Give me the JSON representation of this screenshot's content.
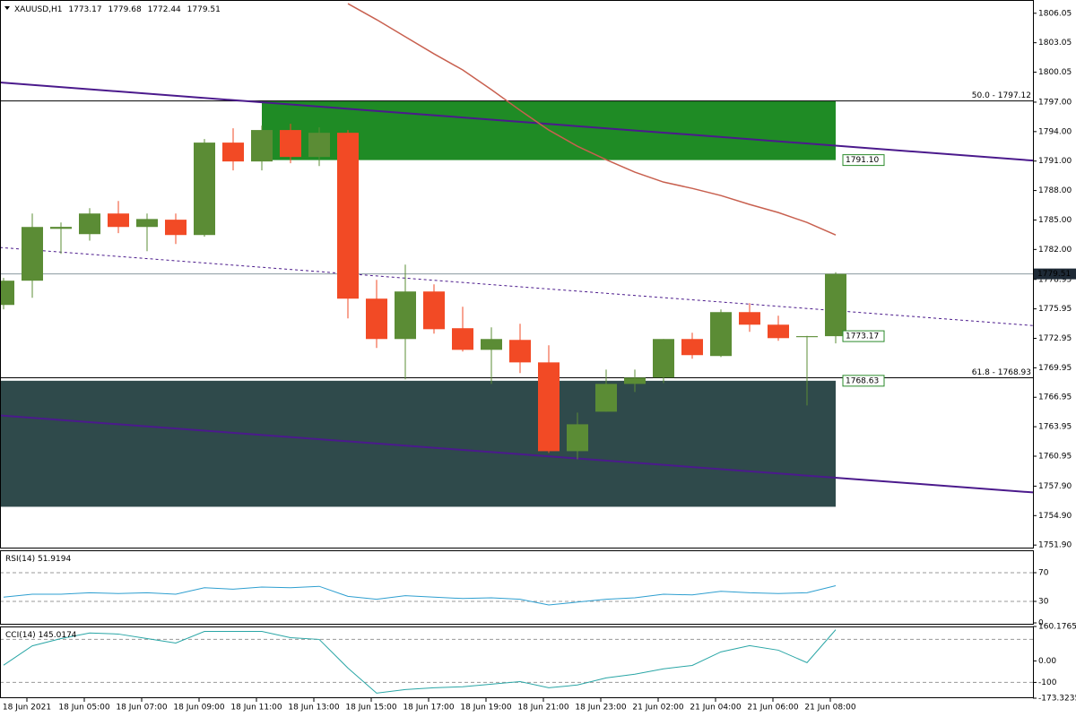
{
  "chart_data": [
    {
      "type": "candlestick",
      "title": "XAUUSD,H1",
      "categories": [
        null,
        "18 Jun 2021",
        null,
        "18 Jun 05:00",
        null,
        "18 Jun 07:00",
        null,
        "18 Jun 09:00",
        null,
        "18 Jun 11:00",
        null,
        "18 Jun 13:00",
        null,
        "18 Jun 15:00",
        null,
        "18 Jun 17:00",
        null,
        "18 Jun 19:00",
        null,
        "18 Jun 21:00",
        null,
        "18 Jun 23:00",
        null,
        "21 Jun 02:00",
        null,
        "21 Jun 04:00",
        null,
        "21 Jun 06:00",
        null,
        "21 Jun 08:00"
      ],
      "ohlc": [
        [
          1776.35,
          1779.1,
          1775.9,
          1778.82
        ],
        [
          1778.82,
          1785.66,
          1777.08,
          1784.29
        ],
        [
          1784.1,
          1784.75,
          1781.55,
          1784.3
        ],
        [
          1783.56,
          1786.2,
          1782.9,
          1785.66
        ],
        [
          1785.66,
          1786.94,
          1783.66,
          1784.29
        ],
        [
          1784.29,
          1785.66,
          1781.83,
          1785.1
        ],
        [
          1785.03,
          1785.66,
          1782.56,
          1783.47
        ],
        [
          1783.47,
          1793.24,
          1783.3,
          1792.88
        ],
        [
          1792.88,
          1794.34,
          1790.05,
          1790.96
        ],
        [
          1790.96,
          1794.61,
          1790.05,
          1794.16
        ],
        [
          1794.16,
          1794.8,
          1790.78,
          1791.42
        ],
        [
          1791.42,
          1794.43,
          1790.5,
          1793.88
        ],
        [
          1793.88,
          1794.16,
          1774.98,
          1776.99
        ],
        [
          1776.99,
          1778.9,
          1771.97,
          1772.88
        ],
        [
          1772.88,
          1780.46,
          1768.77,
          1777.72
        ],
        [
          1777.72,
          1778.45,
          1773.43,
          1773.88
        ],
        [
          1773.98,
          1776.17,
          1771.6,
          1771.78
        ],
        [
          1771.78,
          1774.07,
          1768.31,
          1772.88
        ],
        [
          1772.79,
          1774.43,
          1769.41,
          1770.5
        ],
        [
          1770.5,
          1772.24,
          1761.28,
          1761.46
        ],
        [
          1761.46,
          1765.39,
          1760.64,
          1764.2
        ],
        [
          1765.48,
          1769.77,
          1765.48,
          1768.31
        ],
        [
          1768.31,
          1769.77,
          1767.49,
          1768.95
        ],
        [
          1768.95,
          1772.88,
          1768.4,
          1772.88
        ],
        [
          1772.88,
          1773.52,
          1770.87,
          1771.24
        ],
        [
          1771.15,
          1775.89,
          1771.05,
          1775.62
        ],
        [
          1775.62,
          1776.53,
          1773.61,
          1774.34
        ],
        [
          1774.34,
          1775.25,
          1772.7,
          1772.97
        ],
        [
          1773.07,
          1773.2,
          1766.12,
          1773.17
        ],
        [
          1773.17,
          1779.68,
          1772.44,
          1779.51
        ]
      ],
      "up_color": "#5b8c35",
      "down_color": "#f24a25",
      "ma": {
        "color": "#c8604f",
        "values": [
          null,
          null,
          null,
          null,
          null,
          null,
          null,
          null,
          null,
          null,
          null,
          null,
          1807.03,
          1805.4,
          1803.66,
          1801.92,
          1800.28,
          1798.27,
          1796.17,
          1794.16,
          1792.51,
          1791.14,
          1789.87,
          1788.86,
          1788.22,
          1787.49,
          1786.58,
          1785.76,
          1784.75,
          1783.47
        ]
      },
      "zones": [
        {
          "from": 9,
          "to": 29,
          "top": 1797.12,
          "bottom": 1791.1,
          "label": "1791.10",
          "color": "#1f8b25"
        },
        {
          "from": -0.125,
          "to": 29,
          "top": 1768.63,
          "bottom": 1755.8,
          "label": "1768.63",
          "color": "#2f4a4b"
        }
      ],
      "levels": [
        {
          "value": 1797.12,
          "label": "50.0 - 1797.12"
        },
        {
          "value": 1768.93,
          "label": "61.8 - 1768.93"
        }
      ],
      "trendlines": [
        {
          "x": [
            -0.125,
            35.875
          ],
          "y": [
            1799.0,
            1791.05
          ],
          "color": "#4b1a8c",
          "dashed": false
        },
        {
          "x": [
            -0.125,
            35.875
          ],
          "y": [
            1765.1,
            1757.26
          ],
          "color": "#4b1a8c",
          "dashed": false
        },
        {
          "x": [
            -0.125,
            35.875
          ],
          "y": [
            1782.2,
            1774.25
          ],
          "color": "#4b1a8c",
          "dashed": true
        }
      ],
      "ylim": [
        1751.55,
        1807.4
      ],
      "yticks": [
        1806.05,
        1803.05,
        1800.05,
        {
          "value": 1797,
          "label": "1797.00"
        },
        {
          "value": 1794,
          "label": "1794.00"
        },
        {
          "value": 1791,
          "label": "1791.00"
        },
        {
          "value": 1788,
          "label": "1788.00"
        },
        {
          "value": 1785,
          "label": "1785.00"
        },
        {
          "value": 1782,
          "label": "1782.00"
        },
        1778.95,
        1775.95,
        1772.95,
        1769.95,
        1766.95,
        1763.95,
        1760.95,
        {
          "value": 1757.9,
          "label": "1757.90"
        },
        {
          "value": 1754.9,
          "label": "1754.90"
        },
        {
          "value": 1751.9,
          "label": "1751.90"
        }
      ]
    },
    {
      "type": "line",
      "title": "RSI(14)",
      "color": "#2e9fd0",
      "values": [
        36,
        40,
        40,
        42,
        41,
        42,
        40,
        49,
        47,
        50,
        49,
        51,
        37,
        33,
        38,
        36,
        34,
        35,
        33,
        25,
        29,
        33,
        35,
        40,
        39,
        44,
        42,
        41,
        42,
        51.9194
      ],
      "ylim": [
        0,
        100
      ],
      "yticks": [
        70,
        30,
        0
      ],
      "levels": [
        70,
        30
      ]
    },
    {
      "type": "line",
      "title": "CCI(14)",
      "color": "#2aa6a6",
      "values": [
        -20,
        70,
        104,
        130,
        125,
        104,
        83,
        137,
        137,
        137,
        108,
        100,
        -33,
        -150,
        -133,
        -125,
        -120,
        -108,
        -96,
        -125,
        -112,
        -79,
        -62,
        -37,
        -21,
        42,
        71,
        50,
        -8,
        145.0174
      ],
      "ylim": [
        -173.3235,
        160.1765
      ],
      "yticks": [
        160.1765,
        {
          "value": 0,
          "label": "0.00"
        },
        -100,
        -173.3235
      ],
      "levels": [
        100,
        -100
      ]
    }
  ]
}
